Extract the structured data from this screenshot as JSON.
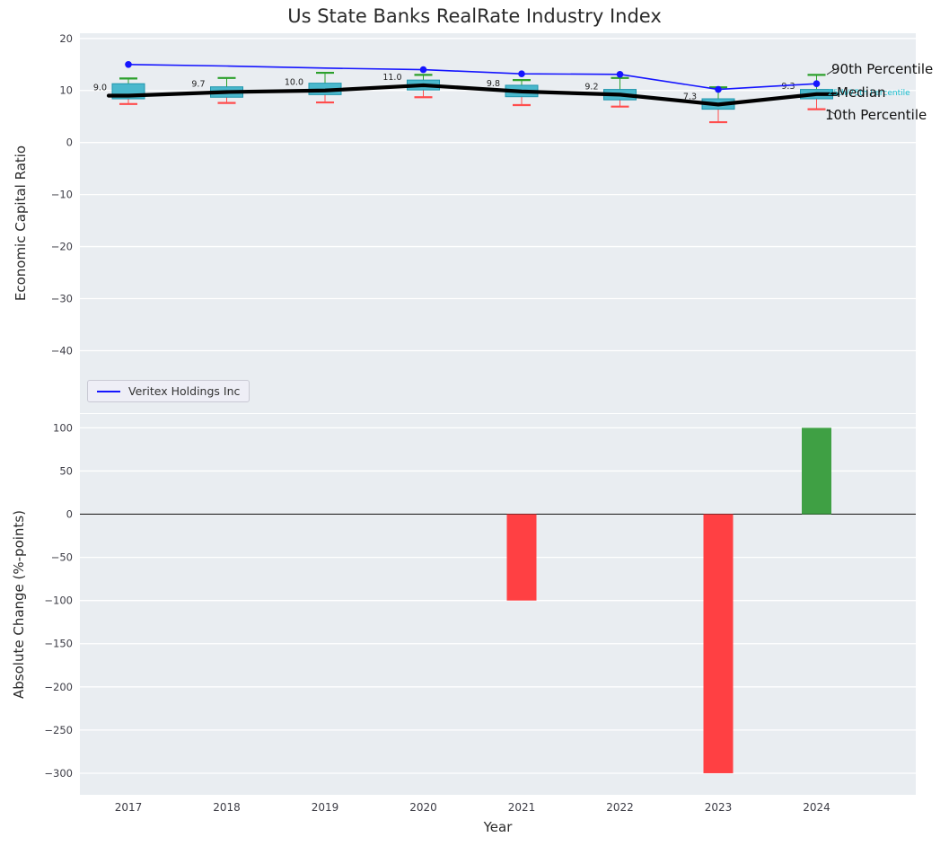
{
  "chart_data": [
    {
      "type": "boxplot+line",
      "title": "Us State Banks RealRate Industry Index",
      "ylabel": "Economic Capital Ratio",
      "ylim": [
        -52,
        21
      ],
      "yticks": [
        20,
        10,
        0,
        -10,
        -20,
        -30,
        -40
      ],
      "categories": [
        "2017",
        "2018",
        "2019",
        "2020",
        "2021",
        "2022",
        "2023",
        "2024"
      ],
      "boxes": [
        {
          "year": "2017",
          "p90": 12.3,
          "q3": 11.3,
          "median": 9.0,
          "q1": 8.4,
          "p10": 7.4,
          "label": "9.0"
        },
        {
          "year": "2018",
          "p90": 12.4,
          "q3": 10.7,
          "median": 9.7,
          "q1": 8.7,
          "p10": 7.6,
          "label": "9.7"
        },
        {
          "year": "2019",
          "p90": 13.4,
          "q3": 11.4,
          "median": 10.0,
          "q1": 9.2,
          "p10": 7.7,
          "label": "10.0"
        },
        {
          "year": "2020",
          "p90": 13.0,
          "q3": 12.0,
          "median": 11.0,
          "q1": 10.1,
          "p10": 8.7,
          "label": "11.0"
        },
        {
          "year": "2021",
          "p90": 12.0,
          "q3": 11.0,
          "median": 9.8,
          "q1": 8.8,
          "p10": 7.2,
          "label": "9.8"
        },
        {
          "year": "2022",
          "p90": 12.4,
          "q3": 10.2,
          "median": 9.2,
          "q1": 8.2,
          "p10": 6.9,
          "label": "9.2"
        },
        {
          "year": "2023",
          "p90": 10.6,
          "q3": 8.4,
          "median": 7.3,
          "q1": 6.4,
          "p10": 3.9,
          "label": "7.3"
        },
        {
          "year": "2024",
          "p90": 13.0,
          "q3": 10.2,
          "median": 9.3,
          "q1": 8.4,
          "p10": 6.4,
          "label": "9.3"
        }
      ],
      "line_series": {
        "name": "Veritex Holdings Inc",
        "values": [
          15.0,
          14.7,
          14.3,
          14.0,
          13.2,
          13.1,
          10.2,
          11.3
        ],
        "markers": [
          true,
          false,
          false,
          true,
          true,
          true,
          true,
          true
        ]
      },
      "legend_position": "lower left",
      "grid": true
    },
    {
      "type": "bar",
      "ylabel": "Absolute Change (%-points)",
      "xlabel": "Year",
      "ylim": [
        -325,
        116
      ],
      "yticks": [
        100,
        50,
        0,
        -50,
        -100,
        -150,
        -200,
        -250,
        -300
      ],
      "categories": [
        "2017",
        "2018",
        "2019",
        "2020",
        "2021",
        "2022",
        "2023",
        "2024"
      ],
      "values": [
        0,
        0,
        0,
        0,
        -100,
        0,
        -300,
        100
      ],
      "grid": true
    }
  ],
  "annotations": {
    "p90": "90th Percentile",
    "median": "Median",
    "p10": "10th Percentile",
    "iqr": "25th/75th Percentile"
  },
  "colors": {
    "line": "#1515ff",
    "box_fill": "#4ab8cd",
    "box_edge": "#2096ad",
    "median": "#000000",
    "cap_top": "#2ca02c",
    "cap_bottom": "#ff4d4d",
    "bar_positive": "#3fa044",
    "bar_negative": "#ff4043",
    "plot_bg": "#e9edf1",
    "grid": "#ffffff",
    "iqr_text": "#17becf",
    "tick_text": "#3d3d46"
  }
}
